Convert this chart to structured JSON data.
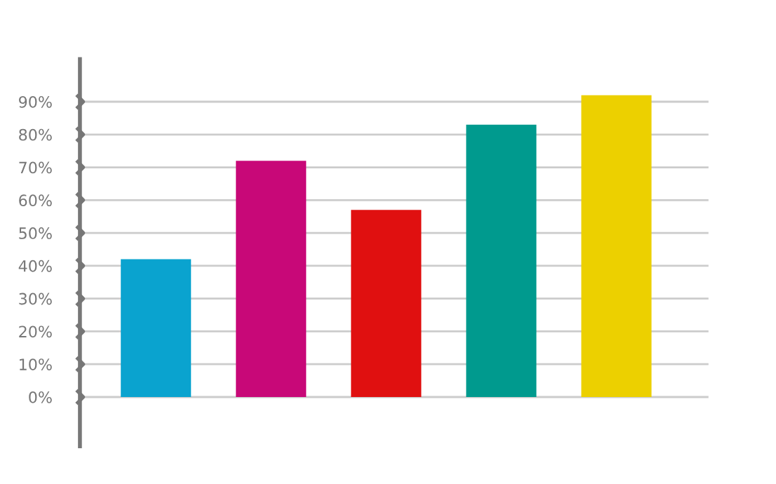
{
  "chart_data": {
    "type": "bar",
    "categories": [
      null,
      null,
      null,
      null,
      null
    ],
    "values": [
      42,
      72,
      57,
      83,
      92
    ],
    "colors": [
      "#0aa3cf",
      "#c80878",
      "#e01010",
      "#009a8e",
      "#ecd000"
    ],
    "ylim": [
      -15,
      103
    ],
    "yticks": [
      {
        "value": 0,
        "label": "0%"
      },
      {
        "value": 10,
        "label": "10%"
      },
      {
        "value": 20,
        "label": "20%"
      },
      {
        "value": 30,
        "label": "30%"
      },
      {
        "value": 40,
        "label": "40%"
      },
      {
        "value": 50,
        "label": "50%"
      },
      {
        "value": 60,
        "label": "60%"
      },
      {
        "value": 70,
        "label": "70%"
      },
      {
        "value": 80,
        "label": "80%"
      },
      {
        "value": 90,
        "label": "90%"
      }
    ],
    "grid": "y",
    "tick_labels": "y"
  }
}
